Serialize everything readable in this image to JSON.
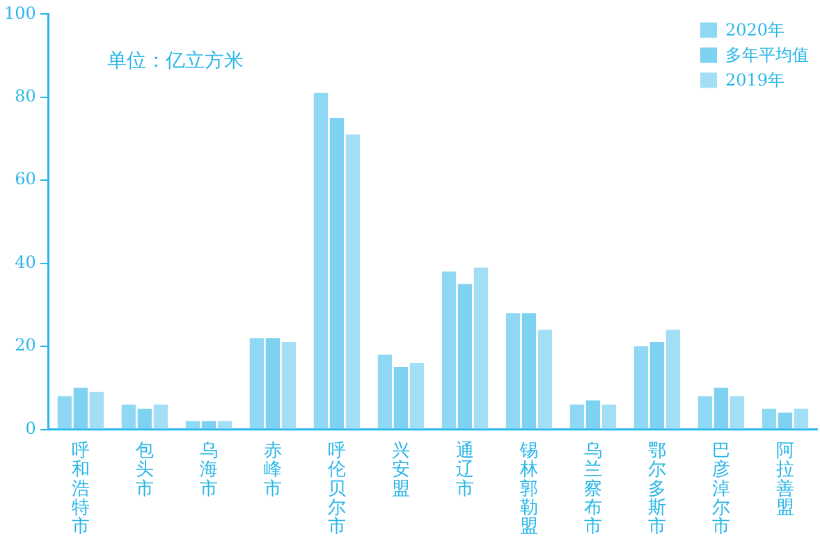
{
  "chart_data": {
    "type": "bar",
    "categories": [
      "呼和浩特市",
      "包头市",
      "乌海市",
      "赤峰市",
      "呼伦贝尔市",
      "兴安盟",
      "通辽市",
      "锡林郭勒盟",
      "乌兰察布市",
      "鄂尔多斯市",
      "巴彦淖尔市",
      "阿拉善盟"
    ],
    "series": [
      {
        "name": "2020年",
        "color": "#8fd8f4",
        "values": [
          8,
          6,
          2,
          22,
          81,
          18,
          38,
          28,
          6,
          20,
          8,
          5
        ]
      },
      {
        "name": "多年平均值",
        "color": "#7dd1f1",
        "values": [
          10,
          5,
          2,
          22,
          75,
          15,
          35,
          28,
          7,
          21,
          10,
          4
        ]
      },
      {
        "name": "2019年",
        "color": "#a2def6",
        "values": [
          9,
          6,
          2,
          21,
          71,
          16,
          39,
          24,
          6,
          24,
          8,
          5
        ]
      }
    ],
    "ylim": [
      0,
      100
    ],
    "yticks": [
      0,
      20,
      40,
      60,
      80,
      100
    ],
    "grid": false,
    "legend": "top right",
    "annotations": [
      "单位：亿立方米"
    ]
  }
}
